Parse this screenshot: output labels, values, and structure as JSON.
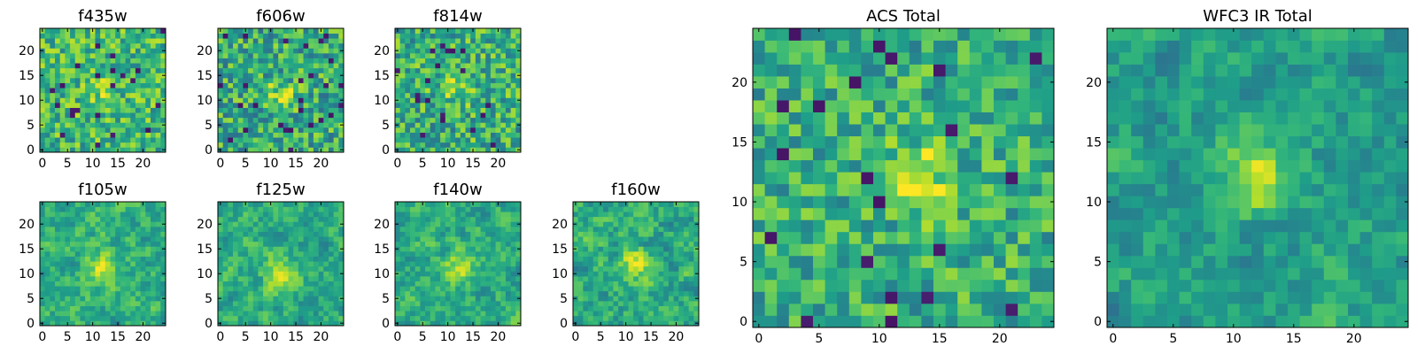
{
  "figure": {
    "colormap": "viridis",
    "palette": [
      "#440154",
      "#482878",
      "#3e4989",
      "#31688e",
      "#26828e",
      "#1f9e89",
      "#35b779",
      "#6ece58",
      "#b5de2b",
      "#fde725"
    ],
    "axis_color": "#000000"
  },
  "chart_data": [
    {
      "type": "heatmap",
      "title": "f435w",
      "grid_size": [
        25,
        25
      ],
      "xlim": [
        -0.5,
        24.5
      ],
      "ylim": [
        -0.5,
        24.5
      ],
      "xticks": [
        0,
        5,
        10,
        15,
        20
      ],
      "yticks": [
        0,
        5,
        10,
        15,
        20
      ],
      "summary": "pixel noise, mostly green-yellow, slightly brighter near center (12,12)",
      "center_peak": [
        12,
        12
      ],
      "peak_strength": 0.15,
      "smoothness": 0,
      "mean_level": 0.66,
      "noise": 0.22,
      "seed": 11
    },
    {
      "type": "heatmap",
      "title": "f606w",
      "grid_size": [
        25,
        25
      ],
      "xlim": [
        -0.5,
        24.5
      ],
      "ylim": [
        -0.5,
        24.5
      ],
      "xticks": [
        0,
        5,
        10,
        15,
        20
      ],
      "yticks": [
        0,
        5,
        10,
        15,
        20
      ],
      "summary": "pixel noise with a faint yellow blob near (12,11)",
      "center_peak": [
        12,
        11
      ],
      "peak_strength": 0.25,
      "smoothness": 0,
      "mean_level": 0.6,
      "noise": 0.24,
      "seed": 22
    },
    {
      "type": "heatmap",
      "title": "f814w",
      "grid_size": [
        25,
        25
      ],
      "xlim": [
        -0.5,
        24.5
      ],
      "ylim": [
        -0.5,
        24.5
      ],
      "xticks": [
        0,
        5,
        10,
        15,
        20
      ],
      "yticks": [
        0,
        5,
        10,
        15,
        20
      ],
      "summary": "pixel noise with a faint yellow blob near (12,12)",
      "center_peak": [
        12,
        12
      ],
      "peak_strength": 0.2,
      "smoothness": 0,
      "mean_level": 0.62,
      "noise": 0.24,
      "seed": 33
    },
    {
      "type": "heatmap",
      "title": "f105w",
      "grid_size": [
        25,
        25
      ],
      "xlim": [
        -0.5,
        24.5
      ],
      "ylim": [
        -0.5,
        24.5
      ],
      "xticks": [
        0,
        5,
        10,
        15,
        20
      ],
      "yticks": [
        0,
        5,
        10,
        15,
        20
      ],
      "summary": "smoother noise, bright yellow blob near (12,11)",
      "center_peak": [
        12,
        11
      ],
      "peak_strength": 0.3,
      "smoothness": 1,
      "mean_level": 0.62,
      "noise": 0.24,
      "seed": 44
    },
    {
      "type": "heatmap",
      "title": "f125w",
      "grid_size": [
        25,
        25
      ],
      "xlim": [
        -0.5,
        24.5
      ],
      "ylim": [
        -0.5,
        24.5
      ],
      "xticks": [
        0,
        5,
        10,
        15,
        20
      ],
      "yticks": [
        0,
        5,
        10,
        15,
        20
      ],
      "summary": "smoother noise, yellow blob near (12,11)",
      "center_peak": [
        12,
        11
      ],
      "peak_strength": 0.3,
      "smoothness": 1,
      "mean_level": 0.62,
      "noise": 0.24,
      "seed": 55
    },
    {
      "type": "heatmap",
      "title": "f140w",
      "grid_size": [
        25,
        25
      ],
      "xlim": [
        -0.5,
        24.5
      ],
      "ylim": [
        -0.5,
        24.5
      ],
      "xticks": [
        0,
        5,
        10,
        15,
        20
      ],
      "yticks": [
        0,
        5,
        10,
        15,
        20
      ],
      "summary": "smoother noise, yellow blob near (12,11)",
      "center_peak": [
        12,
        11
      ],
      "peak_strength": 0.28,
      "smoothness": 1,
      "mean_level": 0.62,
      "noise": 0.24,
      "seed": 66
    },
    {
      "type": "heatmap",
      "title": "f160w",
      "grid_size": [
        25,
        25
      ],
      "xlim": [
        -0.5,
        24.5
      ],
      "ylim": [
        -0.5,
        24.5
      ],
      "xticks": [
        0,
        5,
        10,
        15,
        20
      ],
      "yticks": [
        0,
        5,
        10,
        15,
        20
      ],
      "summary": "smoother noise, yellow blob near (12,12)",
      "center_peak": [
        12,
        12
      ],
      "peak_strength": 0.3,
      "smoothness": 1,
      "mean_level": 0.6,
      "noise": 0.26,
      "seed": 77
    },
    {
      "type": "heatmap",
      "title": "ACS Total",
      "grid_size": [
        25,
        25
      ],
      "xlim": [
        -0.5,
        24.5
      ],
      "ylim": [
        -0.5,
        24.5
      ],
      "xticks": [
        0,
        5,
        10,
        15,
        20
      ],
      "yticks": [
        0,
        5,
        10,
        15,
        20
      ],
      "summary": "co-added ACS image, bright yellow source at about (13,12)",
      "center_peak": [
        13,
        12
      ],
      "peak_strength": 0.32,
      "smoothness": 0,
      "mean_level": 0.62,
      "noise": 0.2,
      "seed": 88
    },
    {
      "type": "heatmap",
      "title": "WFC3 IR Total",
      "grid_size": [
        25,
        25
      ],
      "xlim": [
        -0.5,
        24.5
      ],
      "ylim": [
        -0.5,
        24.5
      ],
      "xticks": [
        0,
        5,
        10,
        15,
        20
      ],
      "yticks": [
        0,
        5,
        10,
        15,
        20
      ],
      "summary": "co-added WFC3 IR image, bright yellow source at about (12,12), dark pixels near edges",
      "center_peak": [
        12,
        12
      ],
      "peak_strength": 0.4,
      "smoothness": 1,
      "mean_level": 0.56,
      "noise": 0.22,
      "seed": 99
    }
  ]
}
